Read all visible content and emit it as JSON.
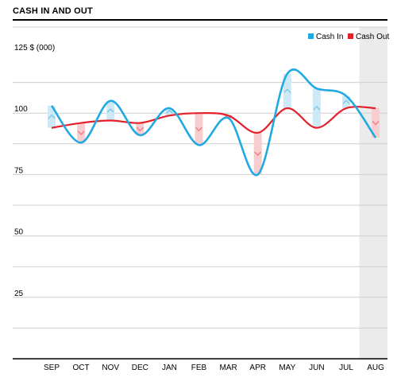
{
  "chart_data": {
    "type": "line",
    "title": "CASH IN AND OUT",
    "ylabel": "$ (000)",
    "categories": [
      "SEP",
      "OCT",
      "NOV",
      "DEC",
      "JAN",
      "FEB",
      "MAR",
      "APR",
      "MAY",
      "JUN",
      "JUL",
      "AUG"
    ],
    "ylim": [
      0,
      125
    ],
    "yticks": [
      25,
      50,
      75,
      100,
      125
    ],
    "grid": true,
    "legend_position": "top-right",
    "highlighted_category": "AUG",
    "series": [
      {
        "name": "Cash In",
        "color": "#21a9e1",
        "values": [
          103,
          88,
          105,
          91,
          102,
          87,
          98,
          75,
          116,
          110,
          107,
          90
        ]
      },
      {
        "name": "Cash Out",
        "color": "#e4202a",
        "values": [
          94,
          96,
          97,
          96,
          99,
          100,
          99,
          92,
          102,
          94,
          102,
          102
        ]
      }
    ]
  }
}
